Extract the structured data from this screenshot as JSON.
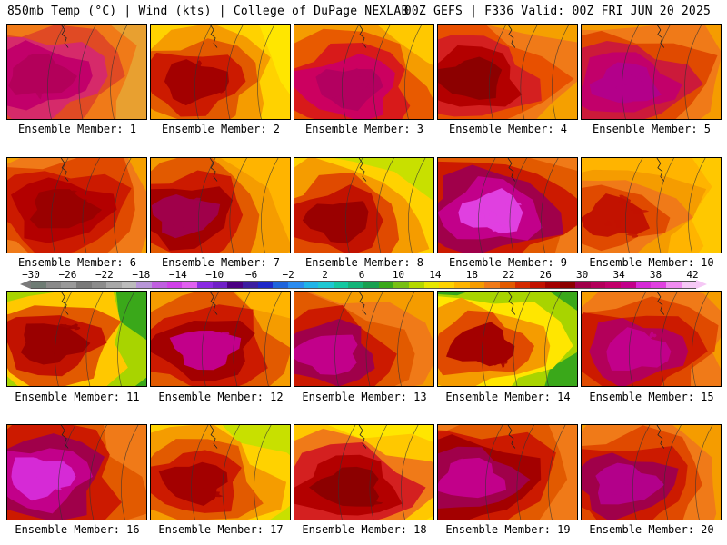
{
  "header": {
    "left": "850mb Temp (°C) | Wind (kts) | College of DuPage NEXLAB",
    "right": "00Z GEFS | F336 Valid: 00Z FRI JUN 20 2025"
  },
  "panels": [
    {
      "label": "Ensemble Member: 1",
      "palette": [
        "#b3005a",
        "#c2006a",
        "#d62a6a",
        "#e04a24",
        "#f07a18",
        "#e8a030"
      ]
    },
    {
      "label": "Ensemble Member: 2",
      "palette": [
        "#a30000",
        "#cc1a00",
        "#e25a00",
        "#f59c00",
        "#ffd200",
        "#ffe600"
      ]
    },
    {
      "label": "Ensemble Member: 3",
      "palette": [
        "#b30060",
        "#cc0060",
        "#d81a1a",
        "#e85a00",
        "#f59c00",
        "#ffc800"
      ]
    },
    {
      "label": "Ensemble Member: 4",
      "palette": [
        "#8c0000",
        "#b30000",
        "#d42020",
        "#e85000",
        "#f07a18",
        "#f5a000"
      ]
    },
    {
      "label": "Ensemble Member: 5",
      "palette": [
        "#b3008a",
        "#c2006a",
        "#cc1a3a",
        "#e04a00",
        "#f07a18",
        "#f59c00"
      ]
    },
    {
      "label": "Ensemble Member: 6",
      "palette": [
        "#9a0000",
        "#b30000",
        "#cc1a00",
        "#e04a00",
        "#f07a18",
        "#f5a000"
      ]
    },
    {
      "label": "Ensemble Member: 7",
      "palette": [
        "#a0004a",
        "#a30000",
        "#cc1a00",
        "#e25a00",
        "#f59c00",
        "#ffb400"
      ]
    },
    {
      "label": "Ensemble Member: 8",
      "palette": [
        "#9a0000",
        "#c21200",
        "#e04a00",
        "#f59c00",
        "#ffd200",
        "#c8e000"
      ]
    },
    {
      "label": "Ensemble Member: 9",
      "palette": [
        "#e040e0",
        "#c2008a",
        "#a0004a",
        "#cc1a00",
        "#e25a00",
        "#f07a18"
      ]
    },
    {
      "label": "Ensemble Member: 10",
      "palette": [
        "#c21200",
        "#e04a00",
        "#f07a18",
        "#f59c00",
        "#ffb400",
        "#ffc800"
      ]
    },
    {
      "label": "Ensemble Member: 11",
      "palette": [
        "#9a0000",
        "#c21200",
        "#e25a00",
        "#ffc800",
        "#a8d400",
        "#3aa81a"
      ]
    },
    {
      "label": "Ensemble Member: 12",
      "palette": [
        "#c2008a",
        "#a30000",
        "#cc1a00",
        "#e25a00",
        "#f59c00",
        "#ffb400"
      ]
    },
    {
      "label": "Ensemble Member: 13",
      "palette": [
        "#c2008a",
        "#a0004a",
        "#cc1a00",
        "#e25a00",
        "#f07a18",
        "#f59c00"
      ]
    },
    {
      "label": "Ensemble Member: 14",
      "palette": [
        "#a30000",
        "#e04a00",
        "#f59c00",
        "#ffe600",
        "#a8d400",
        "#3aa81a"
      ]
    },
    {
      "label": "Ensemble Member: 15",
      "palette": [
        "#c2008a",
        "#b3005a",
        "#cc1a00",
        "#e04a00",
        "#f07a18",
        "#f59c00"
      ]
    },
    {
      "label": "Ensemble Member: 16",
      "palette": [
        "#d62ad6",
        "#c2008a",
        "#a0004a",
        "#cc1a00",
        "#e25a00",
        "#f07a18"
      ]
    },
    {
      "label": "Ensemble Member: 17",
      "palette": [
        "#a30000",
        "#cc1a00",
        "#e25a00",
        "#f59c00",
        "#ffd200",
        "#c8e000"
      ]
    },
    {
      "label": "Ensemble Member: 18",
      "palette": [
        "#8c0000",
        "#b30000",
        "#d42020",
        "#f07a18",
        "#ffc800",
        "#ffe600"
      ]
    },
    {
      "label": "Ensemble Member: 19",
      "palette": [
        "#c2008a",
        "#a0004a",
        "#a30000",
        "#cc1a00",
        "#e25a00",
        "#f07a18"
      ]
    },
    {
      "label": "Ensemble Member: 20",
      "palette": [
        "#b3008a",
        "#a0004a",
        "#cc1a00",
        "#e04a00",
        "#f07a18",
        "#f59c00"
      ]
    }
  ],
  "colorbar": {
    "labels": [
      "−30",
      "−26",
      "−22",
      "−18",
      "−14",
      "−10",
      "−6",
      "−2",
      "2",
      "6",
      "10",
      "14",
      "18",
      "22",
      "26",
      "30",
      "34",
      "38",
      "42"
    ],
    "colors": [
      "#6e7c74",
      "#8a8a8a",
      "#9a9a9a",
      "#7a7a7a",
      "#8c8c8c",
      "#a8a8a8",
      "#bcbcbc",
      "#b896d8",
      "#c060e0",
      "#d040e8",
      "#e060f0",
      "#8a2be2",
      "#7020c8",
      "#4b0082",
      "#3c1ea0",
      "#1e28c8",
      "#1e64dc",
      "#2a8cf0",
      "#20b4e8",
      "#1ec8d2",
      "#14c8a0",
      "#14b478",
      "#18a050",
      "#3aa81a",
      "#78c014",
      "#b4d800",
      "#e6e600",
      "#ffd200",
      "#ffb400",
      "#f59c00",
      "#f07a18",
      "#e25a00",
      "#d42a00",
      "#c21200",
      "#a30000",
      "#8c0000",
      "#a0004a",
      "#b3005a",
      "#c2006a",
      "#c2008a",
      "#d62ad6",
      "#e040e0",
      "#f08cf0",
      "#f5c8f5"
    ]
  }
}
